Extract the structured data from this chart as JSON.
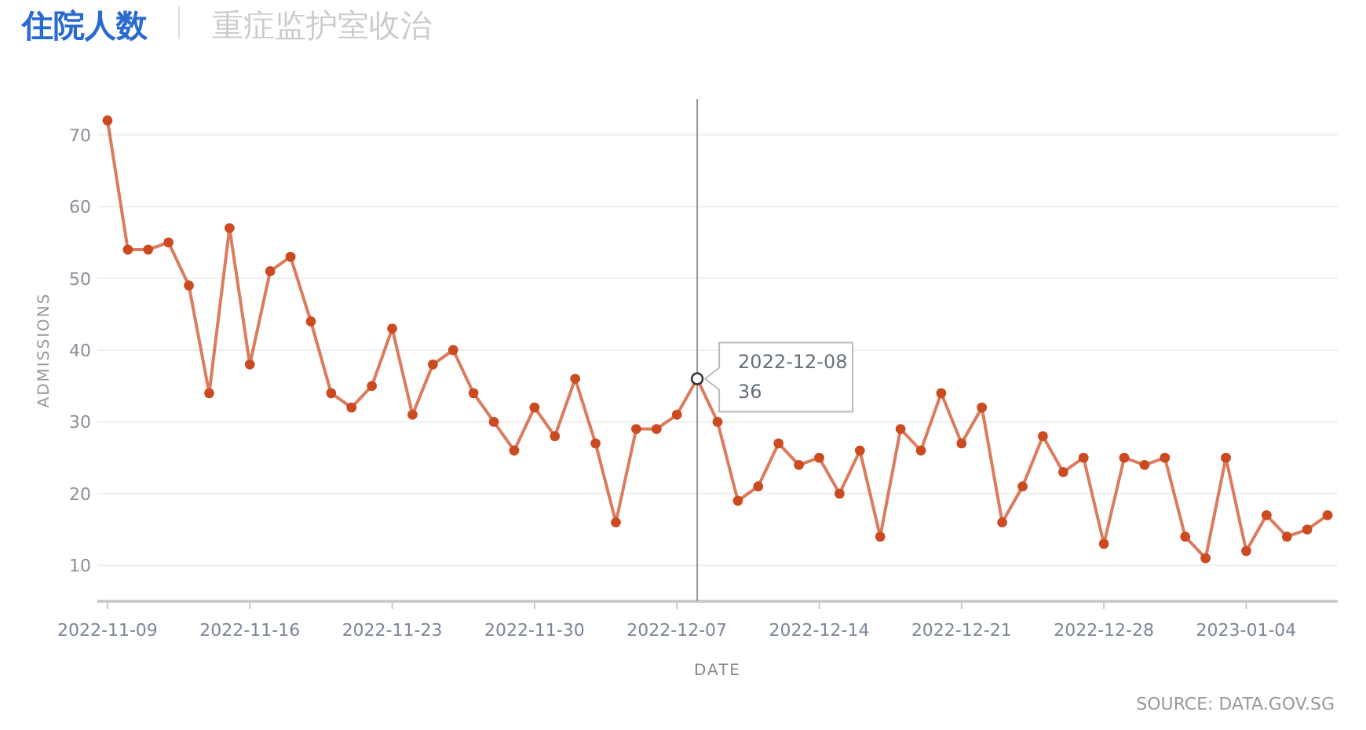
{
  "chart_data": {
    "type": "line",
    "title": "住院人数",
    "subtitle": "重症监护室收治",
    "xlabel": "DATE",
    "ylabel": "ADMISSIONS",
    "x": [
      "2022-11-09",
      "2022-11-10",
      "2022-11-11",
      "2022-11-12",
      "2022-11-13",
      "2022-11-14",
      "2022-11-15",
      "2022-11-16",
      "2022-11-17",
      "2022-11-18",
      "2022-11-19",
      "2022-11-20",
      "2022-11-21",
      "2022-11-22",
      "2022-11-23",
      "2022-11-24",
      "2022-11-25",
      "2022-11-26",
      "2022-11-27",
      "2022-11-28",
      "2022-11-29",
      "2022-11-30",
      "2022-12-01",
      "2022-12-02",
      "2022-12-03",
      "2022-12-04",
      "2022-12-05",
      "2022-12-06",
      "2022-12-07",
      "2022-12-08",
      "2022-12-09",
      "2022-12-10",
      "2022-12-11",
      "2022-12-12",
      "2022-12-13",
      "2022-12-14",
      "2022-12-15",
      "2022-12-16",
      "2022-12-17",
      "2022-12-18",
      "2022-12-19",
      "2022-12-20",
      "2022-12-21",
      "2022-12-22",
      "2022-12-23",
      "2022-12-24",
      "2022-12-25",
      "2022-12-26",
      "2022-12-27",
      "2022-12-28",
      "2022-12-29",
      "2022-12-30",
      "2022-12-31",
      "2023-01-01",
      "2023-01-02",
      "2023-01-03",
      "2023-01-04",
      "2023-01-05",
      "2023-01-06",
      "2023-01-07",
      "2023-01-08"
    ],
    "series": [
      {
        "color": "#cc4a1f",
        "values": [
          72,
          54,
          54,
          55,
          49,
          34,
          57,
          38,
          51,
          53,
          44,
          34,
          32,
          35,
          43,
          31,
          38,
          40,
          34,
          30,
          26,
          32,
          28,
          36,
          27,
          16,
          29,
          29,
          31,
          36,
          30,
          19,
          21,
          27,
          24,
          25,
          20,
          26,
          14,
          29,
          26,
          34,
          27,
          32,
          16,
          21,
          28,
          23,
          25,
          13,
          25,
          24,
          25,
          14,
          11,
          25,
          12,
          17,
          14,
          15,
          17
        ]
      }
    ],
    "xlim": [
      "2022-11-08T12:00",
      "2023-01-08T12:00"
    ],
    "xticks": [
      "2022-11-09",
      "2022-11-16",
      "2022-11-23",
      "2022-11-30",
      "2022-12-07",
      "2022-12-14",
      "2022-12-21",
      "2022-12-28",
      "2023-01-04"
    ],
    "ylim": [
      5,
      75
    ],
    "yticks": [
      10,
      20,
      30,
      40,
      50,
      60,
      70
    ],
    "ref_lines": [
      {
        "axis": "x",
        "value": "2022-12-08",
        "color": "#999999"
      }
    ],
    "annotations": [
      {
        "text": "2022-12-08",
        "x": "2022-12-08",
        "y": 36
      },
      {
        "text": "36",
        "x": "2022-12-08",
        "y": 36
      },
      "SOURCE: DATA.GOV.SG"
    ],
    "grid": "y",
    "marker": "circle",
    "line_style": "solid"
  }
}
